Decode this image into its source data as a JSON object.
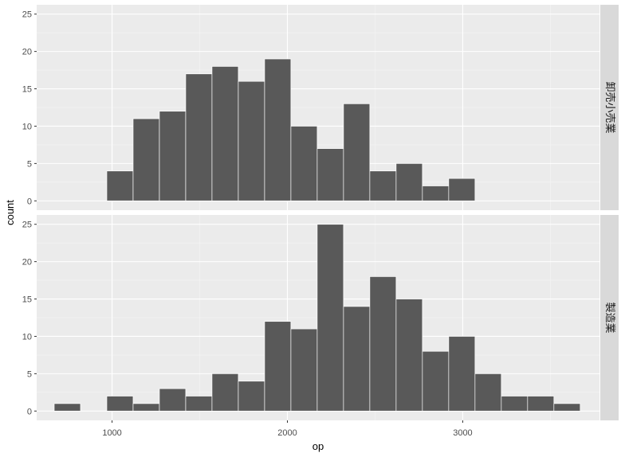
{
  "chart_data": {
    "type": "bar",
    "subtype": "faceted histogram",
    "xlabel": "op",
    "ylabel": "count",
    "xlim": [
      570,
      3780
    ],
    "ylim": [
      -1.25,
      26.25
    ],
    "x_ticks": [
      1000,
      2000,
      3000
    ],
    "y_ticks": [
      0,
      5,
      10,
      15,
      20,
      25
    ],
    "grid": true,
    "legend": "none",
    "facet_layout": "rows, strip labels on right",
    "colors": {
      "bar_fill": "#595959",
      "bar_stroke": "#ffffff",
      "panel_background": "#ebebeb",
      "grid_major": "#ffffff",
      "grid_minor": "#f5f5f5",
      "strip_background": "#d9d9d9",
      "tick_label": "#4d4d4d"
    },
    "panels": [
      {
        "label": "卸売小売業",
        "bins": [
          {
            "x0": 970,
            "x1": 1120,
            "count": 4
          },
          {
            "x0": 1120,
            "x1": 1270,
            "count": 11
          },
          {
            "x0": 1270,
            "x1": 1420,
            "count": 12
          },
          {
            "x0": 1420,
            "x1": 1570,
            "count": 17
          },
          {
            "x0": 1570,
            "x1": 1720,
            "count": 18
          },
          {
            "x0": 1720,
            "x1": 1870,
            "count": 16
          },
          {
            "x0": 1870,
            "x1": 2020,
            "count": 19
          },
          {
            "x0": 2020,
            "x1": 2170,
            "count": 10
          },
          {
            "x0": 2170,
            "x1": 2320,
            "count": 7
          },
          {
            "x0": 2320,
            "x1": 2470,
            "count": 13
          },
          {
            "x0": 2470,
            "x1": 2620,
            "count": 4
          },
          {
            "x0": 2620,
            "x1": 2770,
            "count": 5
          },
          {
            "x0": 2770,
            "x1": 2920,
            "count": 2
          },
          {
            "x0": 2920,
            "x1": 3070,
            "count": 3
          }
        ]
      },
      {
        "label": "製造業",
        "bins": [
          {
            "x0": 670,
            "x1": 820,
            "count": 1
          },
          {
            "x0": 820,
            "x1": 970,
            "count": 0
          },
          {
            "x0": 970,
            "x1": 1120,
            "count": 2
          },
          {
            "x0": 1120,
            "x1": 1270,
            "count": 1
          },
          {
            "x0": 1270,
            "x1": 1420,
            "count": 3
          },
          {
            "x0": 1420,
            "x1": 1570,
            "count": 2
          },
          {
            "x0": 1570,
            "x1": 1720,
            "count": 5
          },
          {
            "x0": 1720,
            "x1": 1870,
            "count": 4
          },
          {
            "x0": 1870,
            "x1": 2020,
            "count": 12
          },
          {
            "x0": 2020,
            "x1": 2170,
            "count": 11
          },
          {
            "x0": 2170,
            "x1": 2320,
            "count": 25
          },
          {
            "x0": 2320,
            "x1": 2470,
            "count": 14
          },
          {
            "x0": 2470,
            "x1": 2620,
            "count": 18
          },
          {
            "x0": 2620,
            "x1": 2770,
            "count": 15
          },
          {
            "x0": 2770,
            "x1": 2920,
            "count": 8
          },
          {
            "x0": 2920,
            "x1": 3070,
            "count": 10
          },
          {
            "x0": 3070,
            "x1": 3220,
            "count": 5
          },
          {
            "x0": 3220,
            "x1": 3370,
            "count": 2
          },
          {
            "x0": 3370,
            "x1": 3520,
            "count": 2
          },
          {
            "x0": 3520,
            "x1": 3670,
            "count": 1
          }
        ]
      }
    ]
  }
}
